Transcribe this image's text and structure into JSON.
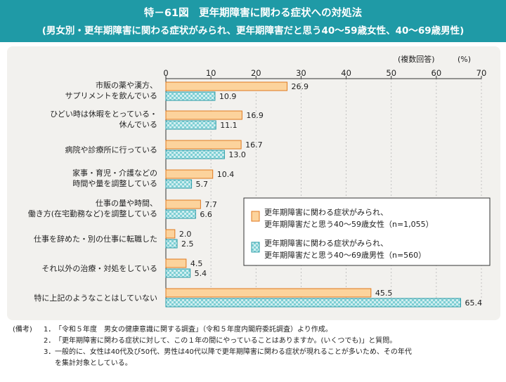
{
  "header": {
    "title_line1": "特－61図　更年期障害に関わる症状への対処法",
    "title_line2": "(男女別・更年期障害に関わる症状がみられ、更年期障害だと思う40～59歳女性、40～69歳男性)"
  },
  "colors": {
    "title_band": "#1f9aa6",
    "panel": "#f2f1ee",
    "female_fill": "#fcd39c",
    "female_stroke": "#e07a1f",
    "male_fill": "#cfeef0",
    "male_check": "#7fcfd4",
    "male_stroke": "#2a9ca7"
  },
  "chart_data": {
    "type": "bar",
    "orientation": "horizontal",
    "unit_note": "(複数回答)",
    "unit": "(%)",
    "xlim": [
      0,
      70
    ],
    "ticks": [
      "0",
      "10",
      "20",
      "30",
      "40",
      "50",
      "60",
      "70"
    ],
    "categories": [
      [
        "市販の薬や漢方、",
        "サプリメントを飲んでいる"
      ],
      [
        "ひどい時は休暇をとっている・",
        "休んでいる"
      ],
      [
        "病院や診療所に行っている"
      ],
      [
        "家事・育児・介護などの",
        "時間や量を調整している"
      ],
      [
        "仕事の量や時間、",
        "働き方(在宅勤務など)を調整している"
      ],
      [
        "仕事を辞めた・別の仕事に転職した"
      ],
      [
        "それ以外の治療・対処をしている"
      ],
      [
        "特に上記のようなことはしていない"
      ]
    ],
    "series": [
      {
        "name": "female",
        "legend": [
          "更年期障害に関わる症状がみられ、",
          "更年期障害だと思う40～59歳女性（n=1,055）"
        ],
        "values": [
          26.9,
          16.9,
          16.7,
          10.4,
          7.7,
          2.0,
          4.5,
          45.5
        ],
        "labels": [
          "26.9",
          "16.9",
          "16.7",
          "10.4",
          "7.7",
          "2.0",
          "4.5",
          "45.5"
        ]
      },
      {
        "name": "male",
        "legend": [
          "更年期障害に関わる症状がみられ、",
          "更年期障害だと思う40～69歳男性（n=560）"
        ],
        "values": [
          10.9,
          11.1,
          13.0,
          5.7,
          6.6,
          2.5,
          5.4,
          65.4
        ],
        "labels": [
          "10.9",
          "11.1",
          "13.0",
          "5.7",
          "6.6",
          "2.5",
          "5.4",
          "65.4"
        ]
      }
    ],
    "legend_position": "right-center"
  },
  "notes": {
    "head": "(備考)",
    "items": [
      {
        "num": "1．",
        "text": "「令和５年度　男女の健康意識に関する調査」（令和５年度内閣府委託調査）より作成。"
      },
      {
        "num": "2．",
        "text": "「更年期障害に関わる症状に対して、この１年の間にやっていることはありますか。(いくつでも)」と質問。"
      },
      {
        "num": "3．",
        "text": "一般的に、女性は40代及び50代、男性は40代以降で更年期障害に関わる症状が現れることが多いため、その年代"
      },
      {
        "num": "",
        "text": "を集計対象としている。"
      }
    ]
  }
}
